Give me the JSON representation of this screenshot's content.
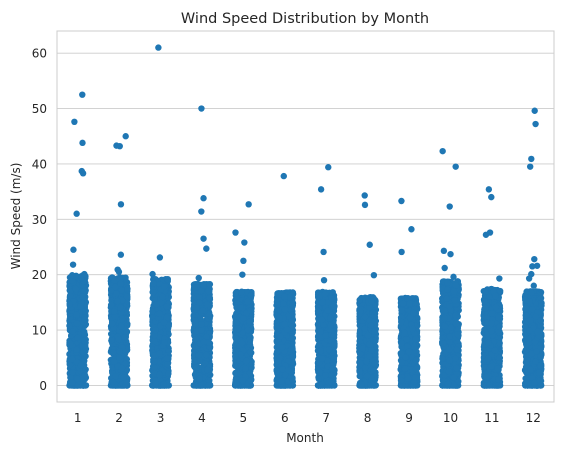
{
  "chart_data": {
    "type": "scatter",
    "subtype": "strip",
    "title": "Wind Speed Distribution by Month",
    "xlabel": "Month",
    "ylabel": "Wind Speed (m/s)",
    "categories": [
      "1",
      "2",
      "3",
      "4",
      "5",
      "6",
      "7",
      "8",
      "9",
      "10",
      "11",
      "12"
    ],
    "ylim": [
      -3,
      64
    ],
    "yticks": [
      0,
      10,
      20,
      30,
      40,
      50,
      60
    ],
    "grid": true,
    "legend": "none",
    "point_color": "#1f77b4",
    "series": [
      {
        "dense_max": [
          19.9,
          19.5,
          19.2,
          18.3,
          17.0,
          16.8,
          16.9,
          16.0,
          15.8,
          18.8,
          17.4,
          17.0
        ],
        "outliers": [
          [
            52.5,
            47.6,
            43.8,
            38.7,
            38.3,
            31.0,
            24.5,
            21.8,
            20.1
          ],
          [
            45.0,
            43.3,
            43.2,
            32.7,
            23.6,
            20.9,
            20.5
          ],
          [
            61.0,
            23.1,
            20.1
          ],
          [
            50.0,
            33.8,
            31.4,
            26.5,
            24.7,
            19.4
          ],
          [
            32.7,
            27.6,
            25.8,
            22.5,
            20.0
          ],
          [
            37.8
          ],
          [
            39.4,
            35.4,
            24.1,
            19.0
          ],
          [
            34.3,
            32.6,
            25.4,
            19.9
          ],
          [
            33.3,
            28.2,
            24.1
          ],
          [
            42.3,
            39.5,
            32.3,
            24.3,
            23.7,
            21.2,
            19.6
          ],
          [
            35.4,
            34.0,
            27.6,
            27.2,
            19.3
          ],
          [
            49.6,
            47.2,
            40.9,
            39.5,
            22.8,
            21.6,
            21.5,
            20.1,
            19.3,
            18.0
          ]
        ]
      }
    ]
  }
}
